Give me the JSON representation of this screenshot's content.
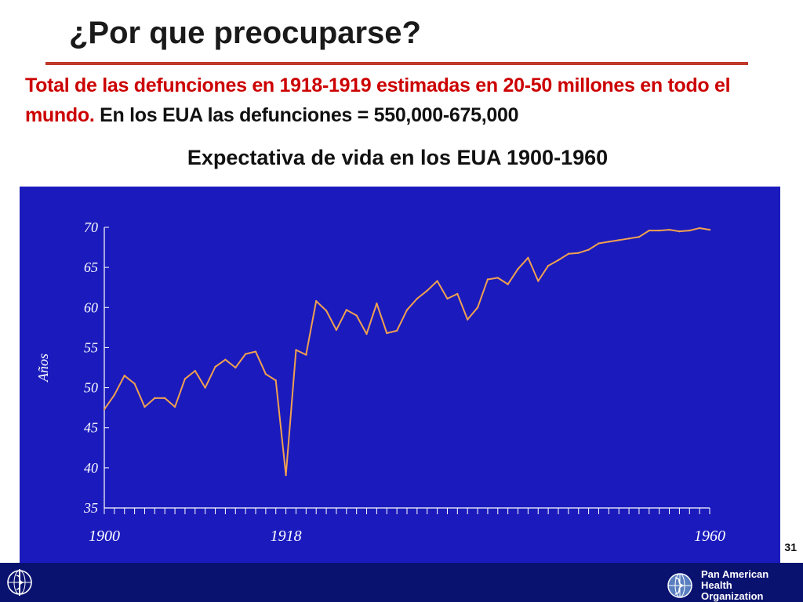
{
  "slide": {
    "title": "¿Por que preocuparse?",
    "subtitle_red": "Total de las defunciones en 1918-1919 estimadas en 20-50 millones en todo el mundo.",
    "subtitle_black": "En los EUA las defunciones = 550,000-675,000",
    "chart_heading": "Expectativa de vida en los EUA 1900-1960",
    "slide_number": "31"
  },
  "footer": {
    "org_line1": "Pan American",
    "org_line2": "Health",
    "org_line3": "Organization",
    "left_logo": "who-emblem-icon",
    "right_logo": "paho-globe-icon"
  },
  "colors": {
    "panel": "#1b1bbd",
    "line": "#f0a050",
    "axis": "#ffffff",
    "title_rule": "#c0392b",
    "subtitle_red": "#cc0000",
    "footer": "#0a1270"
  },
  "chart_data": {
    "type": "line",
    "title": "Expectativa de vida en los EUA 1900-1960",
    "ylabel": "Años",
    "xlabel": "",
    "ylim": [
      35,
      70
    ],
    "yticks": [
      "35",
      "40",
      "45",
      "50",
      "55",
      "60",
      "65",
      "70"
    ],
    "xticks": [
      "1900",
      "1918",
      "1960"
    ],
    "tick_label_font": "symbol",
    "grid": false,
    "series": [
      {
        "x": [
          1900,
          1901,
          1902,
          1903,
          1904,
          1905,
          1906,
          1907,
          1908,
          1909,
          1910,
          1911,
          1912,
          1913,
          1914,
          1915,
          1916,
          1917,
          1918,
          1919,
          1920,
          1921,
          1922,
          1923,
          1924,
          1925,
          1926,
          1927,
          1928,
          1929,
          1930,
          1931,
          1932,
          1933,
          1934,
          1935,
          1936,
          1937,
          1938,
          1939,
          1940,
          1941,
          1942,
          1943,
          1944,
          1945,
          1946,
          1947,
          1948,
          1949,
          1950,
          1951,
          1952,
          1953,
          1954,
          1955,
          1956,
          1957,
          1958,
          1959,
          1960
        ],
        "values": [
          47.3,
          49.1,
          51.5,
          50.5,
          47.6,
          48.7,
          48.7,
          47.6,
          51.1,
          52.1,
          50.0,
          52.6,
          53.5,
          52.5,
          54.2,
          54.5,
          51.7,
          50.9,
          39.1,
          54.7,
          54.1,
          60.8,
          59.6,
          57.2,
          59.7,
          59.0,
          56.7,
          60.5,
          56.8,
          57.1,
          59.7,
          61.1,
          62.1,
          63.3,
          61.1,
          61.7,
          58.5,
          60.0,
          63.5,
          63.7,
          62.9,
          64.8,
          66.2,
          63.3,
          65.2,
          65.9,
          66.7,
          66.8,
          67.2,
          68.0,
          68.2,
          68.4,
          68.6,
          68.8,
          69.6,
          69.6,
          69.7,
          69.5,
          69.6,
          69.9,
          69.7
        ]
      }
    ]
  }
}
